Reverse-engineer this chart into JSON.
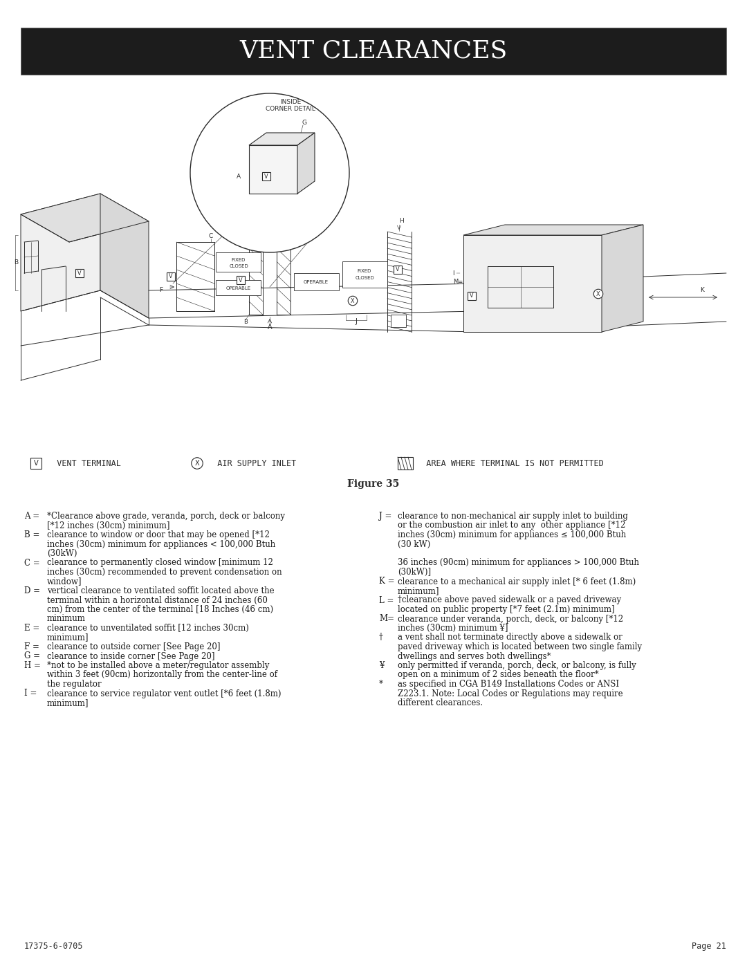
{
  "title": "VENT CLEARANCES",
  "title_bg": "#1c1c1c",
  "title_color": "#ffffff",
  "title_fontsize": 26,
  "figure_label": "Figure 35",
  "bg_color": "#ffffff",
  "footer_left": "17375-6-0705",
  "footer_right": "Page 21",
  "text_left": [
    {
      "key": "A =",
      "indent": false,
      "text": "*Clearance above grade, veranda, porch, deck or balcony"
    },
    {
      "key": "",
      "indent": true,
      "text": "[*12 inches (30cm) minimum]"
    },
    {
      "key": "B =",
      "indent": false,
      "text": "clearance to window or door that may be opened [*12"
    },
    {
      "key": "",
      "indent": true,
      "text": "inches (30cm) minimum for appliances < 100,000 Btuh"
    },
    {
      "key": "",
      "indent": true,
      "text": "(30kW)"
    },
    {
      "key": "C =",
      "indent": false,
      "text": "clearance to permanently closed window [minimum 12"
    },
    {
      "key": "",
      "indent": true,
      "text": "inches (30cm) recommended to prevent condensation on"
    },
    {
      "key": "",
      "indent": true,
      "text": "window]"
    },
    {
      "key": "D =",
      "indent": false,
      "text": "vertical clearance to ventilated soffit located above the"
    },
    {
      "key": "",
      "indent": true,
      "text": "terminal within a horizontal distance of 24 inches (60"
    },
    {
      "key": "",
      "indent": true,
      "text": "cm) from the center of the terminal [18 Inches (46 cm)"
    },
    {
      "key": "",
      "indent": true,
      "text": "minimum"
    },
    {
      "key": "E =",
      "indent": false,
      "text": "clearance to unventilated soffit [12 inches 30cm)"
    },
    {
      "key": "",
      "indent": true,
      "text": "minimum]"
    },
    {
      "key": "F =",
      "indent": false,
      "text": "clearance to outside corner [See Page 20]"
    },
    {
      "key": "G =",
      "indent": false,
      "text": "clearance to inside corner [See Page 20]"
    },
    {
      "key": "H =",
      "indent": false,
      "text": "*not to be installed above a meter/regulator assembly"
    },
    {
      "key": "",
      "indent": true,
      "text": "within 3 feet (90cm) horizontally from the center-line of"
    },
    {
      "key": "",
      "indent": true,
      "text": "the regulator"
    },
    {
      "key": "I =",
      "indent": false,
      "text": "clearance to service regulator vent outlet [*6 feet (1.8m)"
    },
    {
      "key": "",
      "indent": true,
      "text": "minimum]"
    }
  ],
  "text_right": [
    {
      "key": "J =",
      "indent": false,
      "text": "clearance to non-mechanical air supply inlet to building"
    },
    {
      "key": "",
      "indent": true,
      "text": "or the combustion air inlet to any  other appliance [*12"
    },
    {
      "key": "",
      "indent": true,
      "text": "inches (30cm) minimum for appliances ≤ 100,000 Btuh"
    },
    {
      "key": "",
      "indent": true,
      "text": "(30 kW)"
    },
    {
      "key": "",
      "indent": false,
      "text": ""
    },
    {
      "key": "",
      "indent": true,
      "text": "36 inches (90cm) minimum for appliances > 100,000 Btuh"
    },
    {
      "key": "",
      "indent": true,
      "text": "(30kW)]"
    },
    {
      "key": "K =",
      "indent": false,
      "text": "clearance to a mechanical air supply inlet [* 6 feet (1.8m)"
    },
    {
      "key": "",
      "indent": true,
      "text": "minimum]"
    },
    {
      "key": "L =",
      "indent": false,
      "text": "†clearance above paved sidewalk or a paved driveway"
    },
    {
      "key": "",
      "indent": true,
      "text": "located on public property [*7 feet (2.1m) minimum]"
    },
    {
      "key": "M=",
      "indent": false,
      "text": "clearance under veranda, porch, deck, or balcony [*12"
    },
    {
      "key": "",
      "indent": true,
      "text": "inches (30cm) minimum ¥]"
    },
    {
      "key": "†",
      "indent": false,
      "text": "a vent shall not terminate directly above a sidewalk or"
    },
    {
      "key": "",
      "indent": true,
      "text": "paved driveway which is located between two single family"
    },
    {
      "key": "",
      "indent": true,
      "text": "dwellings and serves both dwellings*"
    },
    {
      "key": "¥",
      "indent": false,
      "text": "only permitted if veranda, porch, deck, or balcony, is fully"
    },
    {
      "key": "",
      "indent": true,
      "text": "open on a minimum of 2 sides beneath the floor*"
    },
    {
      "key": "*",
      "indent": false,
      "text": "as specified in CGA B149 Installations Codes or ANSI"
    },
    {
      "key": "",
      "indent": true,
      "text": "Z223.1. Note: Local Codes or Regulations may require"
    },
    {
      "key": "",
      "indent": true,
      "text": "different clearances."
    }
  ]
}
